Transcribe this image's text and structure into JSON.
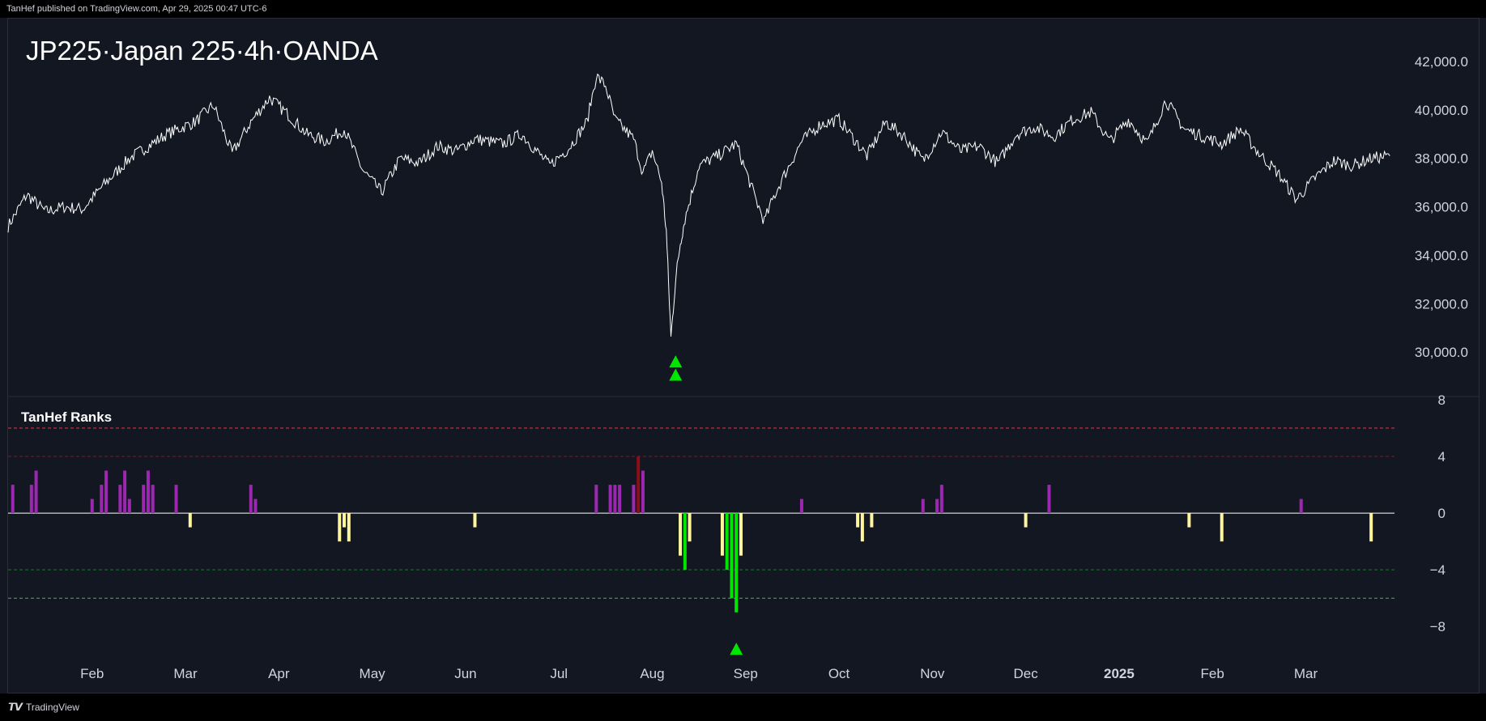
{
  "header": {
    "publisher_text": "TanHef published on TradingView.com, Apr 29, 2025 00:47 UTC-6"
  },
  "footer": {
    "brand": "TradingView",
    "logo_glyph": "𝙏𝙑"
  },
  "chart_data": [
    {
      "type": "line",
      "title": "JP225·Japan 225·4h·OANDA",
      "ylim": [
        28200,
        42800
      ],
      "y_ticks": [
        "42,000.0",
        "40,000.0",
        "38,000.0",
        "36,000.0",
        "34,000.0",
        "32,000.0",
        "30,000.0"
      ],
      "y_tick_values": [
        42000,
        40000,
        38000,
        36000,
        34000,
        32000,
        30000
      ],
      "x_labels": [
        "Feb",
        "Mar",
        "Apr",
        "May",
        "Jun",
        "Jul",
        "Aug",
        "Sep",
        "Oct",
        "Nov",
        "Dec",
        "2025",
        "Feb",
        "Mar"
      ],
      "x_label_months": [
        1,
        2,
        3,
        4,
        5,
        6,
        7,
        8,
        9,
        10,
        11,
        12,
        13,
        14
      ],
      "line_color": "#ffffff",
      "x_months": [
        0,
        0.2,
        0.4,
        0.6,
        0.8,
        1.0,
        1.3,
        1.5,
        1.7,
        2.0,
        2.2,
        2.4,
        2.6,
        2.8,
        3.0,
        3.2,
        3.4,
        3.6,
        3.8,
        4.0,
        4.2,
        4.4,
        4.6,
        4.8,
        5.0,
        5.3,
        5.5,
        5.8,
        6.0,
        6.2,
        6.3,
        6.4,
        6.5,
        6.7,
        6.8,
        6.9,
        7.0,
        7.05,
        7.1,
        7.15,
        7.2,
        7.25,
        7.4,
        7.6,
        7.8,
        8.0,
        8.1,
        8.2,
        8.3,
        8.5,
        8.7,
        8.9,
        9.0,
        9.2,
        9.4,
        9.6,
        9.8,
        10.0,
        10.2,
        10.4,
        10.6,
        10.8,
        11.0,
        11.2,
        11.4,
        11.6,
        11.8,
        12.0,
        12.2,
        12.4,
        12.6,
        12.8,
        13.0,
        13.2,
        13.4,
        13.6,
        13.8,
        14.0,
        14.2,
        14.4,
        14.6,
        14.8
      ],
      "values": [
        35200,
        36500,
        35800,
        36000,
        35900,
        36800,
        38000,
        38500,
        39000,
        39500,
        40200,
        38200,
        39500,
        40500,
        39800,
        39000,
        38700,
        39200,
        37500,
        36600,
        38000,
        37800,
        38500,
        38300,
        38800,
        38600,
        39000,
        37700,
        38400,
        39500,
        41400,
        41000,
        39600,
        38800,
        37400,
        38300,
        37000,
        35000,
        30600,
        33000,
        34500,
        35500,
        37700,
        38100,
        38600,
        36400,
        35400,
        36400,
        37200,
        38700,
        39400,
        39600,
        39100,
        38100,
        39500,
        38900,
        37900,
        39100,
        38300,
        38500,
        37800,
        39000,
        39300,
        38900,
        39600,
        39900,
        38700,
        39600,
        38600,
        40400,
        39200,
        38900,
        38600,
        39200,
        38200,
        37400,
        36300,
        37200,
        37900,
        37700,
        38000,
        38100
      ],
      "markers": [
        {
          "month": 7.15,
          "value": 29600,
          "shape": "triangle-up",
          "color": "#00e600"
        },
        {
          "month": 7.15,
          "value": 29050,
          "shape": "triangle-up",
          "color": "#00e600"
        }
      ]
    },
    {
      "type": "bar",
      "title": "TanHef Ranks",
      "ylim": [
        -10.5,
        8
      ],
      "y_ticks": [
        "8",
        "4",
        "0",
        "−4",
        "−8"
      ],
      "y_tick_values": [
        8,
        4,
        0,
        -4,
        -8
      ],
      "reference_lines": [
        {
          "value": 6,
          "color": "#f23645",
          "style": "dashed"
        },
        {
          "value": 4,
          "color": "#801922",
          "style": "dashed"
        },
        {
          "value": 0,
          "color": "#ffffff",
          "style": "solid"
        },
        {
          "value": -4,
          "color": "#1b7a2f",
          "style": "dashed"
        },
        {
          "value": -6,
          "color": "#4caf50",
          "style": "dashed"
        }
      ],
      "colors": {
        "positive": "#9c27b0",
        "high_positive": "#8b0f19",
        "negative": "#fff59d",
        "high_negative": "#00e600"
      },
      "bars": [
        {
          "month": 0.05,
          "value": 2
        },
        {
          "month": 0.25,
          "value": 2
        },
        {
          "month": 0.3,
          "value": 3
        },
        {
          "month": 0.9,
          "value": 1
        },
        {
          "month": 1.0,
          "value": 2
        },
        {
          "month": 1.05,
          "value": 3
        },
        {
          "month": 1.2,
          "value": 2
        },
        {
          "month": 1.25,
          "value": 3
        },
        {
          "month": 1.3,
          "value": 1
        },
        {
          "month": 1.45,
          "value": 2
        },
        {
          "month": 1.5,
          "value": 3
        },
        {
          "month": 1.55,
          "value": 2
        },
        {
          "month": 1.8,
          "value": 2
        },
        {
          "month": 2.6,
          "value": 2
        },
        {
          "month": 2.65,
          "value": 1
        },
        {
          "month": 6.3,
          "value": 2
        },
        {
          "month": 6.45,
          "value": 2
        },
        {
          "month": 6.5,
          "value": 2
        },
        {
          "month": 6.55,
          "value": 2
        },
        {
          "month": 6.7,
          "value": 2
        },
        {
          "month": 6.75,
          "value": 4
        },
        {
          "month": 6.8,
          "value": 3
        },
        {
          "month": 8.5,
          "value": 1
        },
        {
          "month": 9.8,
          "value": 1
        },
        {
          "month": 9.95,
          "value": 1
        },
        {
          "month": 10.0,
          "value": 2
        },
        {
          "month": 11.15,
          "value": 2
        },
        {
          "month": 13.85,
          "value": 1
        },
        {
          "month": 1.95,
          "value": -1
        },
        {
          "month": 3.55,
          "value": -2
        },
        {
          "month": 3.6,
          "value": -1
        },
        {
          "month": 3.65,
          "value": -2
        },
        {
          "month": 5.0,
          "value": -1
        },
        {
          "month": 7.2,
          "value": -3
        },
        {
          "month": 7.25,
          "value": -4
        },
        {
          "month": 7.3,
          "value": -2
        },
        {
          "month": 7.65,
          "value": -3
        },
        {
          "month": 7.7,
          "value": -4
        },
        {
          "month": 7.75,
          "value": -6
        },
        {
          "month": 7.8,
          "value": -7
        },
        {
          "month": 7.85,
          "value": -3
        },
        {
          "month": 9.1,
          "value": -1
        },
        {
          "month": 9.15,
          "value": -2
        },
        {
          "month": 9.25,
          "value": -1
        },
        {
          "month": 10.9,
          "value": -1
        },
        {
          "month": 12.65,
          "value": -1
        },
        {
          "month": 13.0,
          "value": -2
        },
        {
          "month": 14.6,
          "value": -2
        }
      ],
      "markers": [
        {
          "month": 7.8,
          "value": -9.6,
          "shape": "triangle-up",
          "color": "#00e600"
        }
      ]
    }
  ]
}
